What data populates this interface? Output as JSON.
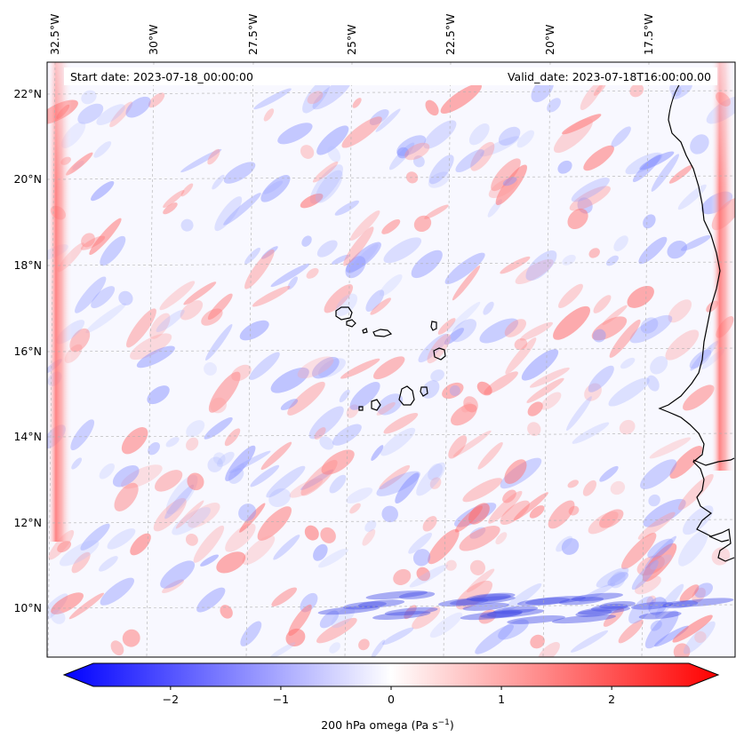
{
  "map": {
    "start_date": "Start date: 2023-07-18_00:00:00",
    "valid_date": "Valid_date: 2023-07-18T16:00:00.00",
    "lon_labels": [
      "32.5°W",
      "30°W",
      "27.5°W",
      "25°W",
      "22.5°W",
      "20°W",
      "17.5°W"
    ],
    "lat_labels": [
      "22°N",
      "20°N",
      "18°N",
      "16°N",
      "14°N",
      "12°N",
      "10°N"
    ],
    "colors": {
      "negative": "#0000ff",
      "neutral": "#ffffff",
      "positive": "#ff0000",
      "coastline": "#000000",
      "grid": "#b0b0b0"
    }
  },
  "colorbar": {
    "ticks": [
      "−2",
      "−1",
      "0",
      "1",
      "2"
    ],
    "tick_values": [
      -2,
      -1,
      0,
      1,
      2
    ],
    "range": [
      -2.7,
      2.7
    ],
    "label_main": "200 hPa omega (Pa s",
    "label_sup": "−1",
    "label_close": ")"
  }
}
